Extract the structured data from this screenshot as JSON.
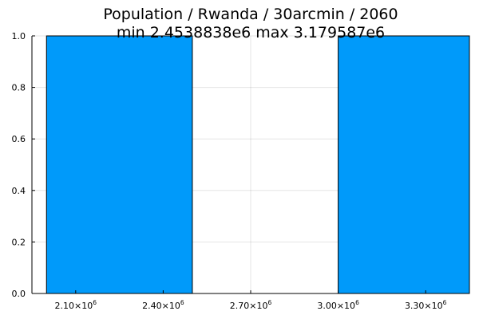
{
  "chart_data": {
    "type": "bar",
    "title": "Population / Rwanda / 30arcmin / 2060",
    "subtitle": "min 2.4538838e6  max 3.179587e6",
    "xlabel": "",
    "ylabel": "",
    "xlim": [
      1950000,
      3450000
    ],
    "ylim": [
      0,
      1
    ],
    "bins": [
      {
        "x0": 2000000,
        "x1": 2500000,
        "value": 1
      },
      {
        "x0": 2500000,
        "x1": 3000000,
        "value": 0
      },
      {
        "x0": 3000000,
        "x1": 3500000,
        "value": 1
      }
    ],
    "x_ticks": [
      {
        "value": 2100000,
        "mantissa": "2.10",
        "times": "×10",
        "exponent": "6"
      },
      {
        "value": 2400000,
        "mantissa": "2.40",
        "times": "×10",
        "exponent": "6"
      },
      {
        "value": 2700000,
        "mantissa": "2.70",
        "times": "×10",
        "exponent": "6"
      },
      {
        "value": 3000000,
        "mantissa": "3.00",
        "times": "×10",
        "exponent": "6"
      },
      {
        "value": 3300000,
        "mantissa": "3.30",
        "times": "×10",
        "exponent": "6"
      }
    ],
    "y_ticks": [
      {
        "value": 0.0,
        "label": "0.0"
      },
      {
        "value": 0.2,
        "label": "0.2"
      },
      {
        "value": 0.4,
        "label": "0.4"
      },
      {
        "value": 0.6,
        "label": "0.6"
      },
      {
        "value": 0.8,
        "label": "0.8"
      },
      {
        "value": 1.0,
        "label": "1.0"
      }
    ],
    "bar_color": "#009AFA",
    "grid": true,
    "legend": "none"
  }
}
